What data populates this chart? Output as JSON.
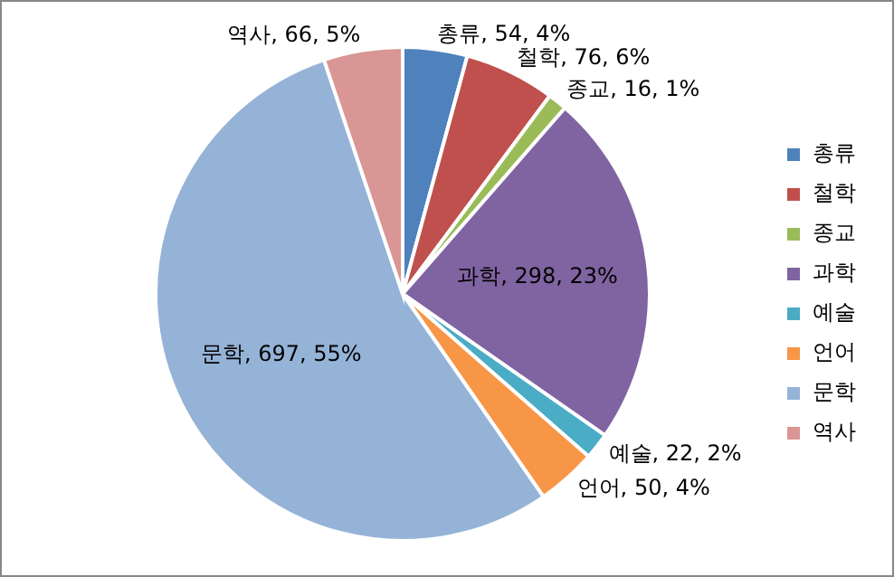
{
  "chart_data": {
    "type": "pie",
    "categories": [
      "총류",
      "철학",
      "종교",
      "과학",
      "예술",
      "언어",
      "문학",
      "역사"
    ],
    "values": [
      54,
      76,
      16,
      298,
      22,
      50,
      697,
      66
    ],
    "colors": [
      "#4f81bd",
      "#c0504d",
      "#9bbb59",
      "#8064a2",
      "#4bacc6",
      "#f79646",
      "#95b3d7",
      "#d99694"
    ],
    "value_labels": [
      "총류, 54, 4%",
      "철학, 76, 6%",
      "종교, 16, 1%",
      "과학, 298, 23%",
      "예술, 22, 2%",
      "언어, 50, 4%",
      "문학, 697, 55%",
      "역사, 66, 5%"
    ],
    "legend": "right"
  }
}
